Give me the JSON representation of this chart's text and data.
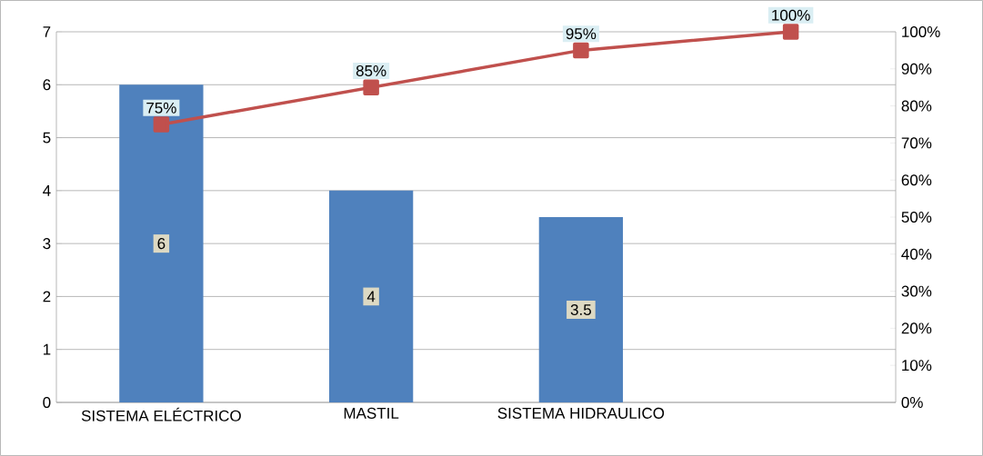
{
  "chart_data": {
    "type": "bar",
    "categories": [
      "SISTEMA ELÉCTRICO",
      "MASTIL",
      "SISTEMA HIDRAULICO",
      null
    ],
    "series": [
      {
        "color": "#4f81bd",
        "values": [
          6,
          4,
          3.5,
          null
        ],
        "value_labels": [
          "6",
          "4",
          "3.5",
          null
        ]
      },
      {
        "type": "line",
        "axis": "y2",
        "color": "#c0504d",
        "marker": "square",
        "values": [
          75,
          85,
          95,
          100
        ],
        "value_labels": [
          "75%",
          "85%",
          "95%",
          "100%"
        ]
      }
    ],
    "ylim": [
      0,
      7
    ],
    "yticks": [
      0,
      1,
      2,
      3,
      4,
      5,
      6,
      7
    ],
    "y2lim": [
      0,
      100
    ],
    "y2ticks": [
      {
        "value": 0,
        "label": "0%"
      },
      {
        "value": 10,
        "label": "10%"
      },
      {
        "value": 20,
        "label": "20%"
      },
      {
        "value": 30,
        "label": "30%"
      },
      {
        "value": 40,
        "label": "40%"
      },
      {
        "value": 50,
        "label": "50%"
      },
      {
        "value": 60,
        "label": "60%"
      },
      {
        "value": 70,
        "label": "70%"
      },
      {
        "value": 80,
        "label": "80%"
      },
      {
        "value": 90,
        "label": "90%"
      },
      {
        "value": 100,
        "label": "100%"
      }
    ],
    "grid": "y"
  }
}
